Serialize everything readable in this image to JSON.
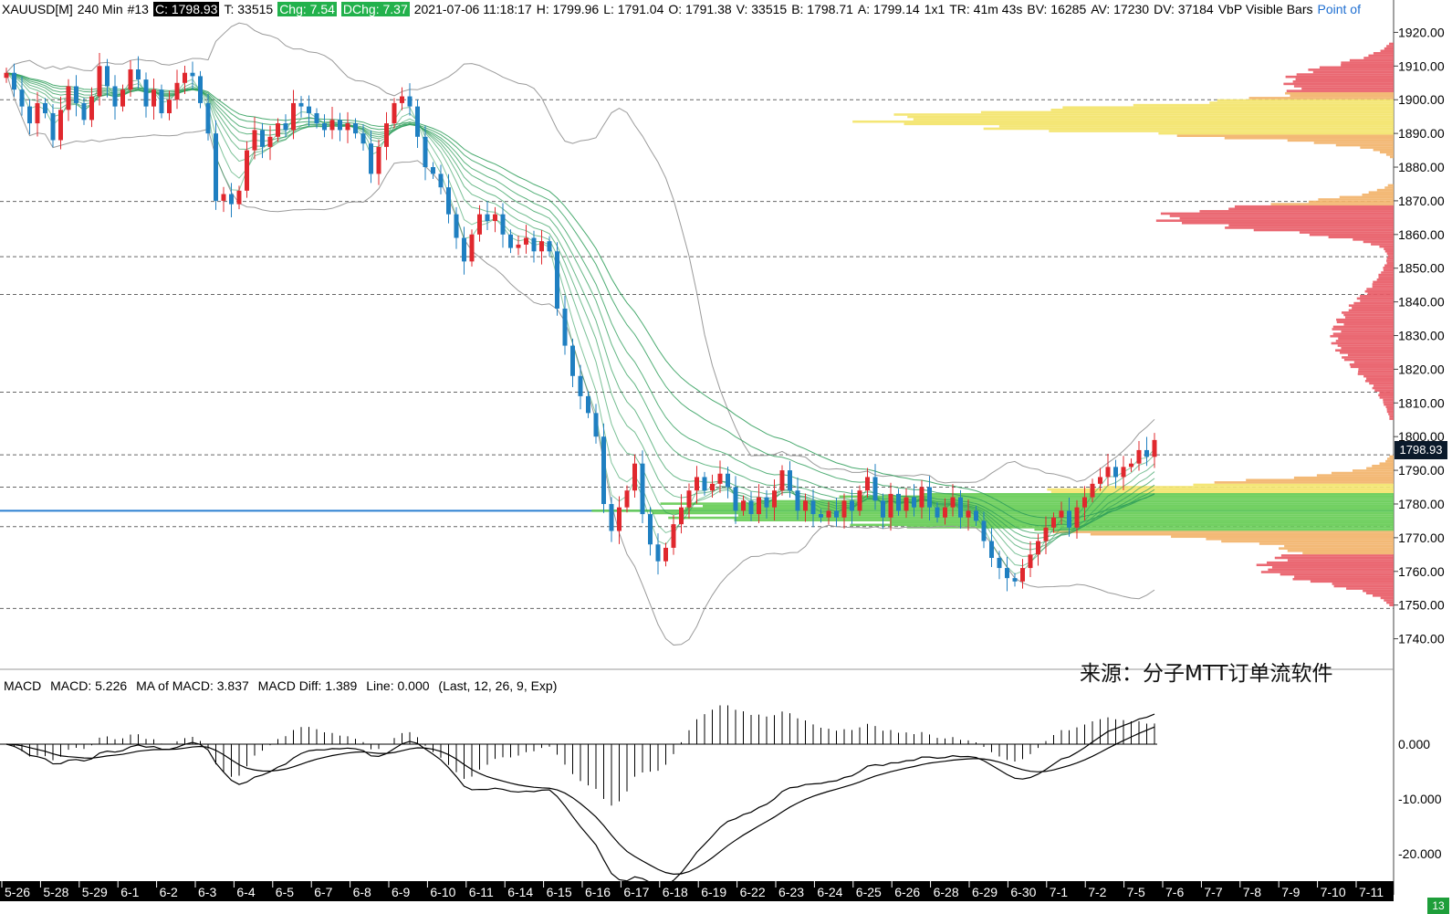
{
  "header": {
    "symbol": "XAUUSD[M]",
    "timeframe": "240 Min",
    "bar_id": "#13",
    "close": "C: 1798.93",
    "ticks": "T: 33515",
    "change": "Chg: 7.54",
    "daily_change": "DChg: 7.37",
    "timestamp": "2021-07-06 11:18:17",
    "high": "H: 1799.96",
    "low": "L: 1791.04",
    "open": "O: 1791.38",
    "volume": "V: 33515",
    "bid": "B: 1798.71",
    "ask": "A: 1799.14",
    "ratio": "1x1",
    "time_remaining": "TR: 41m 43s",
    "bid_volume": "BV: 16285",
    "ask_volume": "AV: 17230",
    "delta_volume": "DV: 37184",
    "profile_label": "VbP Visible Bars",
    "point_of": "Point of"
  },
  "macd_header": {
    "name": "MACD",
    "macd": "MACD: 5.226",
    "ma": "MA of MACD: 3.837",
    "diff": "MACD Diff: 1.389",
    "line": "Line: 0.000",
    "params": "(Last, 12, 26, 9, Exp)"
  },
  "last_price": "1798.93",
  "source_text": "来源：分子MTT订单流软件",
  "bars_badge": "13",
  "colors": {
    "up": "#e0282e",
    "down": "#1f7fc1",
    "ribbon": "#2e9d5a",
    "bollinger": "#9a9a9a",
    "profile_high": "#e85b66",
    "profile_mid": "#f2b36a",
    "profile_value": "#f3e46a",
    "profile_poc": "#66cc55"
  },
  "chart_data": [
    {
      "type": "candlestick",
      "title": "XAUUSD[M] 240 Min",
      "x": [
        "5-26",
        "5-28",
        "5-29",
        "6-1",
        "6-2",
        "6-3",
        "6-4",
        "6-5",
        "6-7",
        "6-8",
        "6-9",
        "6-10",
        "6-11",
        "6-14",
        "6-15",
        "6-16",
        "6-17",
        "6-18",
        "6-19",
        "6-22",
        "6-23",
        "6-24",
        "6-25",
        "6-26",
        "6-28",
        "6-29",
        "6-30",
        "7-1",
        "7-2",
        "7-5",
        "7-6",
        "7-7",
        "7-8",
        "7-9",
        "7-10",
        "7-11"
      ],
      "ylim": [
        1735,
        1925
      ],
      "yticks": [
        "1920.00",
        "1910.00",
        "1900.00",
        "1890.00",
        "1880.00",
        "1870.00",
        "1860.00",
        "1850.00",
        "1840.00",
        "1830.00",
        "1820.00",
        "1810.00",
        "1800.00",
        "1790.00",
        "1780.00",
        "1770.00",
        "1760.00",
        "1750.00",
        "1740.00"
      ],
      "close_path": [
        [
          0,
          1908
        ],
        [
          1,
          1903
        ],
        [
          2,
          1898
        ],
        [
          3,
          1893
        ],
        [
          4,
          1899
        ],
        [
          5,
          1896
        ],
        [
          6,
          1888
        ],
        [
          7,
          1897
        ],
        [
          8,
          1904
        ],
        [
          9,
          1899
        ],
        [
          10,
          1894
        ],
        [
          11,
          1901
        ],
        [
          12,
          1910
        ],
        [
          13,
          1904
        ],
        [
          14,
          1898
        ],
        [
          15,
          1903
        ],
        [
          16,
          1909
        ],
        [
          17,
          1906
        ],
        [
          18,
          1898
        ],
        [
          19,
          1903
        ],
        [
          20,
          1896
        ],
        [
          21,
          1900
        ],
        [
          22,
          1905
        ],
        [
          23,
          1908
        ],
        [
          24,
          1907
        ],
        [
          25,
          1899
        ],
        [
          26,
          1890
        ],
        [
          27,
          1870
        ],
        [
          28,
          1872
        ],
        [
          29,
          1869
        ],
        [
          30,
          1873
        ],
        [
          31,
          1885
        ],
        [
          32,
          1891
        ],
        [
          33,
          1886
        ],
        [
          34,
          1889
        ],
        [
          35,
          1893
        ],
        [
          36,
          1891
        ],
        [
          37,
          1899
        ],
        [
          38,
          1898
        ],
        [
          39,
          1896
        ],
        [
          40,
          1893
        ],
        [
          41,
          1891
        ],
        [
          42,
          1894
        ],
        [
          43,
          1891
        ],
        [
          44,
          1893
        ],
        [
          45,
          1890
        ],
        [
          46,
          1887
        ],
        [
          47,
          1878
        ],
        [
          48,
          1886
        ],
        [
          49,
          1893
        ],
        [
          50,
          1899
        ],
        [
          51,
          1901
        ],
        [
          52,
          1898
        ],
        [
          53,
          1889
        ],
        [
          54,
          1880
        ],
        [
          55,
          1878
        ],
        [
          56,
          1874
        ],
        [
          57,
          1866
        ],
        [
          58,
          1859
        ],
        [
          59,
          1852
        ],
        [
          60,
          1860
        ],
        [
          61,
          1866
        ],
        [
          62,
          1864
        ],
        [
          63,
          1866
        ],
        [
          64,
          1860
        ],
        [
          65,
          1856
        ],
        [
          66,
          1857
        ],
        [
          67,
          1859
        ],
        [
          68,
          1855
        ],
        [
          69,
          1858
        ],
        [
          70,
          1855
        ],
        [
          71,
          1838
        ],
        [
          72,
          1827
        ],
        [
          73,
          1818
        ],
        [
          74,
          1812
        ],
        [
          75,
          1807
        ],
        [
          76,
          1800
        ],
        [
          77,
          1780
        ],
        [
          78,
          1772
        ],
        [
          79,
          1779
        ],
        [
          80,
          1784
        ],
        [
          81,
          1792
        ],
        [
          82,
          1777
        ],
        [
          83,
          1768
        ],
        [
          84,
          1763
        ],
        [
          85,
          1767
        ],
        [
          86,
          1774
        ],
        [
          87,
          1779
        ],
        [
          88,
          1784
        ],
        [
          89,
          1788
        ],
        [
          90,
          1784
        ],
        [
          91,
          1786
        ],
        [
          92,
          1789
        ],
        [
          93,
          1785
        ],
        [
          94,
          1778
        ],
        [
          95,
          1781
        ],
        [
          96,
          1777
        ],
        [
          97,
          1782
        ],
        [
          98,
          1779
        ],
        [
          99,
          1784
        ],
        [
          100,
          1790
        ],
        [
          101,
          1784
        ],
        [
          102,
          1778
        ],
        [
          103,
          1781
        ],
        [
          104,
          1777
        ],
        [
          105,
          1776
        ],
        [
          106,
          1778
        ],
        [
          107,
          1776
        ],
        [
          108,
          1781
        ],
        [
          109,
          1778
        ],
        [
          110,
          1784
        ],
        [
          111,
          1788
        ],
        [
          112,
          1781
        ],
        [
          113,
          1776
        ],
        [
          114,
          1783
        ],
        [
          115,
          1778
        ],
        [
          116,
          1782
        ],
        [
          117,
          1779
        ],
        [
          118,
          1785
        ],
        [
          119,
          1779
        ],
        [
          120,
          1776
        ],
        [
          121,
          1779
        ],
        [
          122,
          1782
        ],
        [
          123,
          1776
        ],
        [
          124,
          1778
        ],
        [
          125,
          1775
        ],
        [
          126,
          1769
        ],
        [
          127,
          1764
        ],
        [
          128,
          1761
        ],
        [
          129,
          1758
        ],
        [
          130,
          1757
        ],
        [
          131,
          1761
        ],
        [
          132,
          1765
        ],
        [
          133,
          1769
        ],
        [
          134,
          1773
        ],
        [
          135,
          1776
        ],
        [
          136,
          1778
        ],
        [
          137,
          1773
        ],
        [
          138,
          1779
        ],
        [
          139,
          1782
        ],
        [
          140,
          1786
        ],
        [
          141,
          1788
        ],
        [
          142,
          1791
        ],
        [
          143,
          1788
        ],
        [
          144,
          1791
        ],
        [
          145,
          1792
        ],
        [
          146,
          1796
        ],
        [
          147,
          1794
        ],
        [
          148,
          1799
        ]
      ],
      "current_price": 1798.93,
      "profile_levels": [
        1900.0,
        1869.8,
        1853.4,
        1842.2,
        1813.2,
        1794.6,
        1785.0,
        1773.3,
        1749.0
      ],
      "poc": 1778.0
    },
    {
      "type": "line",
      "title": "MACD",
      "series": [
        {
          "name": "MACD"
        },
        {
          "name": "MA of MACD"
        }
      ],
      "ylim": [
        -25,
        10
      ],
      "yticks": [
        "0.000",
        "-10.000",
        "-20.000"
      ],
      "last": {
        "macd": 5.226,
        "ma": 3.837,
        "diff": 1.389,
        "line": 0.0
      }
    }
  ]
}
